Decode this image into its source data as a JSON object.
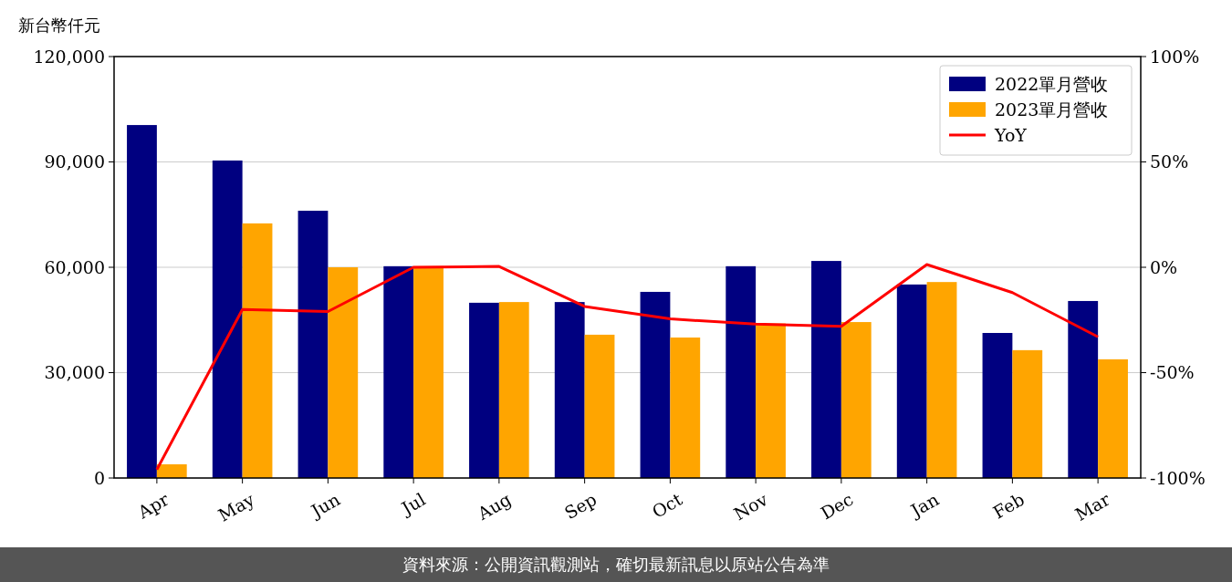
{
  "chart_data": {
    "type": "bar",
    "ylabel": "新台幣仟元",
    "categories": [
      "Apr",
      "May",
      "Jun",
      "Jul",
      "Aug",
      "Sep",
      "Oct",
      "Nov",
      "Dec",
      "Jan",
      "Feb",
      "Mar"
    ],
    "series": [
      {
        "name": "2022單月營收",
        "color": "#000080",
        "values": [
          100500,
          90400,
          76100,
          60300,
          49900,
          50100,
          53000,
          60300,
          61800,
          55100,
          41300,
          50400
        ]
      },
      {
        "name": "2023單月營收",
        "color": "#ffa500",
        "values": [
          3900,
          72500,
          60000,
          60300,
          50100,
          40800,
          40000,
          44000,
          44400,
          55800,
          36400,
          33800
        ]
      },
      {
        "name": "YoY",
        "type": "line",
        "axis": "y2",
        "color": "#ff0000",
        "values": [
          -96,
          -20,
          -21,
          0,
          0.4,
          -18.6,
          -24.5,
          -27,
          -28,
          1.3,
          -12,
          -33
        ]
      }
    ],
    "ylim": [
      0,
      120000
    ],
    "yticks": [
      {
        "value": 0,
        "label": "0"
      },
      {
        "value": 30000,
        "label": "30,000"
      },
      {
        "value": 60000,
        "label": "60,000"
      },
      {
        "value": 90000,
        "label": "90,000"
      },
      {
        "value": 120000,
        "label": "120,000"
      }
    ],
    "y2lim": [
      -100,
      100
    ],
    "y2ticks": [
      {
        "value": -100,
        "label": "-100%"
      },
      {
        "value": -50,
        "label": "-50%"
      },
      {
        "value": 0,
        "label": "0%"
      },
      {
        "value": 50,
        "label": "50%"
      },
      {
        "value": 100,
        "label": "100%"
      }
    ],
    "grid": "y",
    "legend": "top right",
    "marker": "none",
    "annotations": [
      "資料來源：公開資訊觀測站，確切最新訊息以原站公告為準"
    ]
  }
}
